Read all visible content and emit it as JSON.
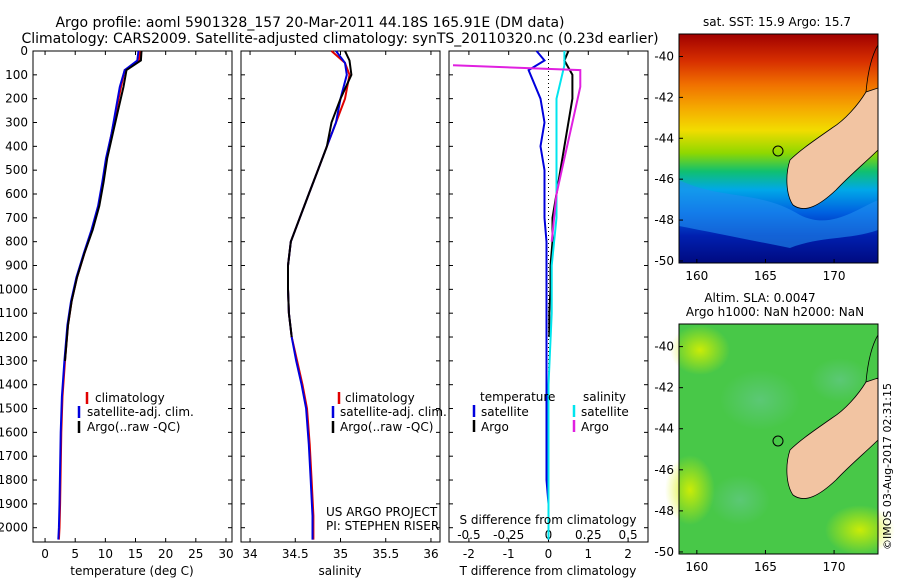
{
  "header": {
    "line1": "Argo profile: aoml 5901328_157 20-Mar-2011 44.18S 165.91E (DM data)",
    "line2": "Climatology: CARS2009. Satellite-adjusted climatology: synTS_20110320.nc (0.23d earlier)"
  },
  "colors": {
    "climatology": "#e00000",
    "satellite": "#0000dd",
    "argo": "#000000",
    "sat_salinity": "#00e5ee",
    "argo_salinity": "#e020e0",
    "land": "#f2c4a2"
  },
  "chart_data": [
    {
      "type": "line",
      "xlabel": "temperature (deg C)",
      "ylabel": "",
      "xlim": [
        -2,
        31
      ],
      "ylim": [
        2060,
        0
      ],
      "xticks": [
        "0",
        "5",
        "10",
        "15",
        "20",
        "25",
        "30"
      ],
      "yticks": [
        "0",
        "100",
        "200",
        "300",
        "400",
        "500",
        "600",
        "700",
        "800",
        "900",
        "1000",
        "1100",
        "1200",
        "1300",
        "1400",
        "1500",
        "1600",
        "1700",
        "1800",
        "1900",
        "2000"
      ],
      "legend": {
        "placement": "bottom-center",
        "entries": [
          "climatology",
          "satellite-adj. clim.",
          "Argo(..raw -QC)"
        ]
      },
      "series": [
        {
          "name": "climatology",
          "x": [
            15.8,
            15.6,
            13.2,
            12.6,
            11.8,
            11.0,
            10.2,
            9.6,
            8.9,
            7.8,
            6.5,
            5.3,
            4.4,
            3.8,
            3.3,
            2.9,
            2.7,
            2.6,
            2.5,
            2.4,
            2.3
          ],
          "y": [
            0,
            40,
            80,
            150,
            250,
            350,
            450,
            550,
            650,
            750,
            850,
            950,
            1050,
            1150,
            1300,
            1450,
            1600,
            1750,
            1900,
            2000,
            2050
          ]
        },
        {
          "name": "satellite-adj. clim.",
          "x": [
            15.5,
            15.3,
            13.2,
            12.4,
            11.7,
            11.0,
            10.1,
            9.5,
            8.8,
            7.7,
            6.4,
            5.2,
            4.3,
            3.7,
            3.2,
            2.8,
            2.6,
            2.5,
            2.4,
            2.3,
            2.2
          ],
          "y": [
            0,
            40,
            80,
            150,
            250,
            350,
            450,
            550,
            650,
            750,
            850,
            950,
            1050,
            1150,
            1300,
            1450,
            1600,
            1750,
            1900,
            2000,
            2050
          ]
        },
        {
          "name": "Argo(..raw -QC)",
          "x": [
            16.0,
            15.9,
            13.5,
            13.0,
            12.1,
            11.2,
            10.3,
            9.7,
            9.0,
            7.9,
            6.5,
            5.3,
            4.4,
            3.8,
            3.3
          ],
          "y": [
            0,
            40,
            80,
            150,
            250,
            350,
            450,
            550,
            650,
            750,
            850,
            950,
            1050,
            1150,
            1300
          ]
        }
      ]
    },
    {
      "type": "line",
      "xlabel": "salinity",
      "xlim": [
        33.9,
        36.1
      ],
      "ylim": [
        2060,
        0
      ],
      "xticks": [
        "34",
        "34.5",
        "35",
        "35.5",
        "36"
      ],
      "legend": {
        "placement": "bottom-center",
        "entries": [
          "climatology",
          "satellite-adj. clim.",
          "Argo(..raw -QC)"
        ]
      },
      "annotation": [
        "US ARGO PROJECT",
        "PI: STEPHEN RISER"
      ],
      "series": [
        {
          "name": "climatology",
          "x": [
            34.9,
            35.05,
            35.1,
            35.05,
            34.95,
            34.85,
            34.75,
            34.65,
            34.55,
            34.45,
            34.42,
            34.42,
            34.43,
            34.46,
            34.52,
            34.58,
            34.63,
            34.66,
            34.68,
            34.7,
            34.7
          ],
          "y": [
            0,
            50,
            100,
            200,
            300,
            400,
            500,
            600,
            700,
            800,
            900,
            1000,
            1100,
            1200,
            1300,
            1400,
            1500,
            1650,
            1800,
            1950,
            2050
          ]
        },
        {
          "name": "satellite-adj. clim.",
          "x": [
            34.95,
            35.05,
            35.07,
            35.0,
            34.95,
            34.85,
            34.75,
            34.65,
            34.55,
            34.45,
            34.42,
            34.42,
            34.43,
            34.46,
            34.51,
            34.57,
            34.62,
            34.65,
            34.67,
            34.69,
            34.69
          ],
          "y": [
            0,
            50,
            100,
            200,
            300,
            400,
            500,
            600,
            700,
            800,
            900,
            1000,
            1100,
            1200,
            1300,
            1400,
            1500,
            1650,
            1800,
            1950,
            2050
          ]
        },
        {
          "name": "Argo(..raw -QC)",
          "x": [
            35.05,
            35.1,
            35.12,
            35.0,
            34.9,
            34.85,
            34.75,
            34.65,
            34.55,
            34.45,
            34.42,
            34.42,
            34.43,
            34.46
          ],
          "y": [
            0,
            40,
            100,
            200,
            300,
            400,
            500,
            600,
            700,
            800,
            900,
            1000,
            1100,
            1200
          ]
        }
      ]
    },
    {
      "type": "line",
      "xlabel": "T difference from climatology",
      "xlabel2": "S difference from climatology",
      "xlim": [
        -2.5,
        2.5
      ],
      "ylim": [
        2060,
        0
      ],
      "xticks": [
        "-2",
        "-1",
        "0",
        "1",
        "2"
      ],
      "xticks2": [
        "-0.5",
        "-0.25",
        "0",
        "0.25",
        "0.5"
      ],
      "legend": {
        "placement": "bottom",
        "headers": [
          "temperature",
          "salinity"
        ],
        "entries": [
          "satellite",
          "Argo",
          "satellite",
          "Argo"
        ]
      },
      "series": [
        {
          "name": "temperature satellite",
          "x": [
            -0.3,
            -0.1,
            -0.5,
            -0.2,
            -0.1,
            -0.2,
            -0.1,
            -0.1,
            -0.1,
            -0.05,
            -0.05,
            -0.05,
            -0.05,
            -0.05,
            -0.05,
            -0.05,
            0,
            0,
            0
          ],
          "y": [
            0,
            40,
            80,
            200,
            300,
            400,
            500,
            600,
            700,
            800,
            900,
            1000,
            1200,
            1400,
            1600,
            1800,
            1900,
            2000,
            2050
          ]
        },
        {
          "name": "temperature Argo",
          "x": [
            0.5,
            0.4,
            0.6,
            0.6,
            0.5,
            0.4,
            0.3,
            0.2,
            0.1,
            0.1,
            0.05,
            0.05,
            0.02,
            0.02
          ],
          "y": [
            0,
            40,
            100,
            200,
            300,
            400,
            500,
            600,
            700,
            800,
            900,
            1000,
            1100,
            1200
          ]
        },
        {
          "name": "salinity satellite",
          "x": [
            0.1,
            0.1,
            0.05,
            0.05,
            0.05,
            0.05,
            0.02,
            0.02,
            0,
            0,
            0
          ],
          "y": [
            0,
            60,
            200,
            300,
            500,
            700,
            900,
            1100,
            1400,
            1800,
            2050
          ]
        },
        {
          "name": "salinity Argo",
          "x": [
            -0.6,
            0.2,
            0.2,
            0.15,
            0.1,
            0.05,
            0.02
          ],
          "y": [
            60,
            80,
            150,
            300,
            450,
            600,
            800
          ]
        }
      ]
    }
  ],
  "maps": {
    "sst": {
      "title": "sat. SST: 15.9 Argo: 15.7",
      "xticks": [
        "160",
        "165",
        "170"
      ],
      "yticks": [
        "-40",
        "-42",
        "-44",
        "-46",
        "-48",
        "-50"
      ]
    },
    "sla": {
      "title1": "Altim. SLA: 0.0047",
      "title2": "Argo h1000: NaN h2000: NaN",
      "xticks": [
        "160",
        "165",
        "170"
      ],
      "yticks": [
        "-40",
        "-42",
        "-44",
        "-46",
        "-48",
        "-50"
      ]
    }
  },
  "footer": {
    "imos": "©IMOS 03-Aug-2017 02:31:15"
  }
}
